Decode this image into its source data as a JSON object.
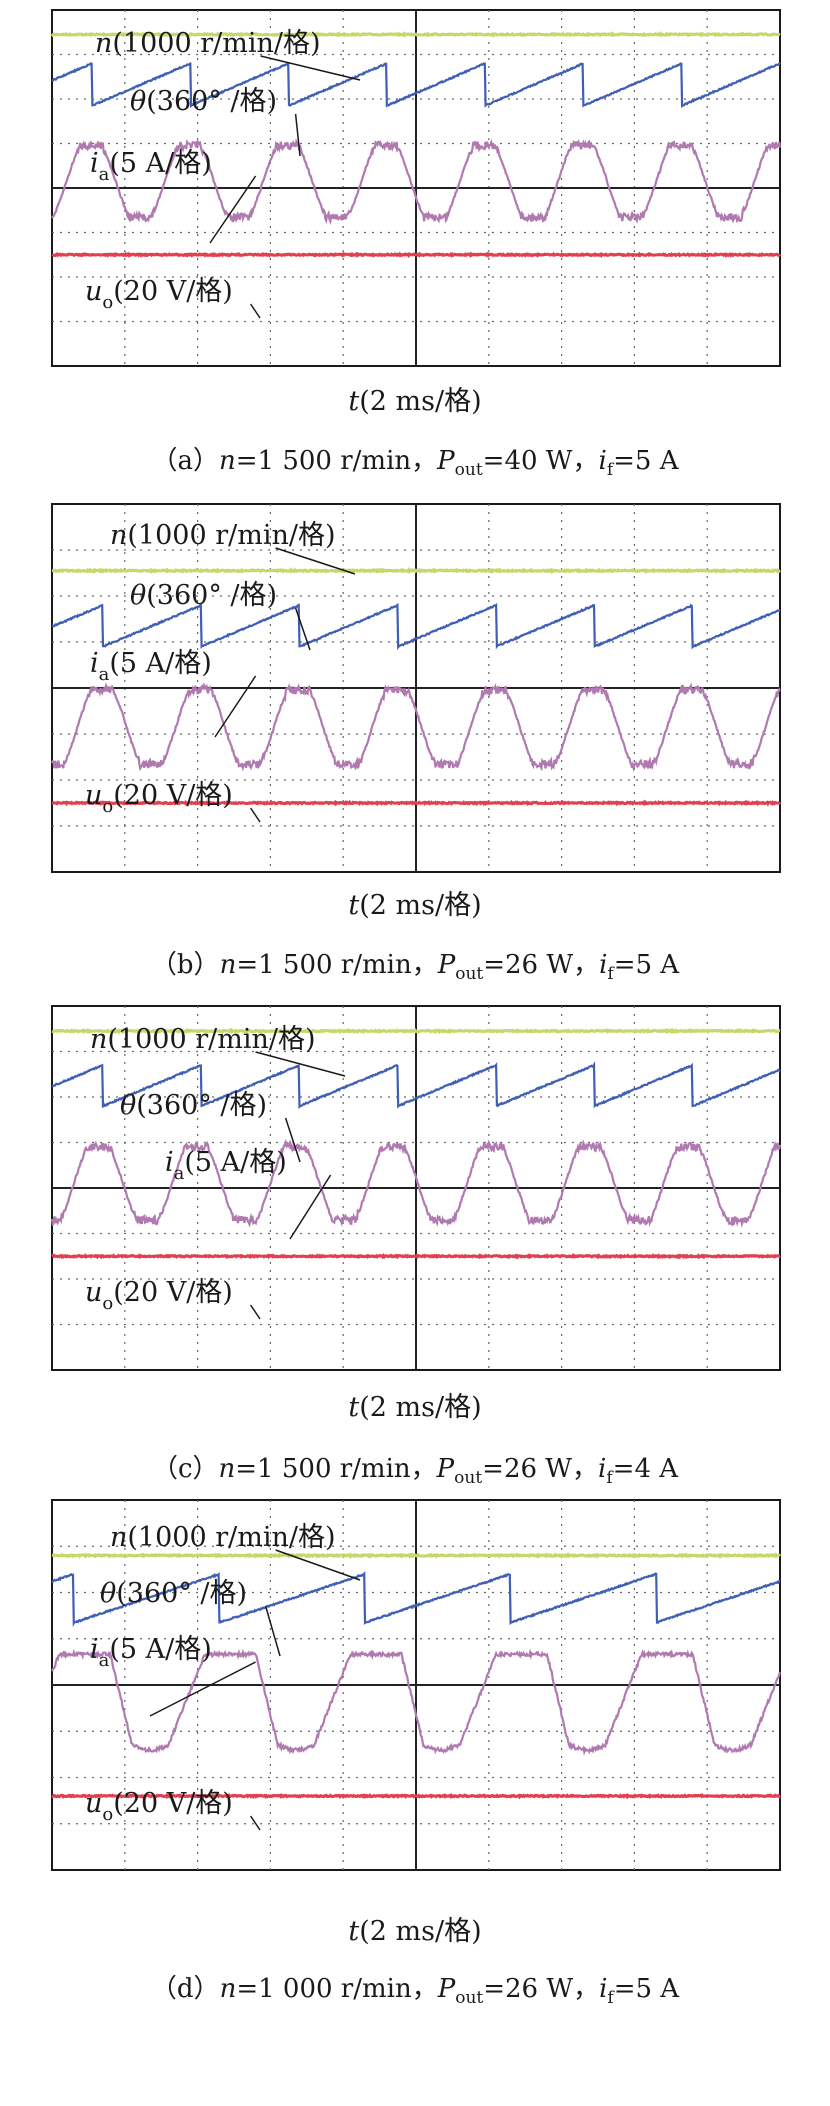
{
  "chart_data": [
    {
      "type": "line",
      "id": "a",
      "caption": {
        "tag": "（a）",
        "n_sym": "n",
        "n_val": "=1 500 r/min，",
        "p_sym": "P",
        "p_sub": "out",
        "p_val": "=40 W，",
        "i_sym": "i",
        "i_sub": "f",
        "i_val": "=5 A"
      },
      "xlabel": {
        "sym": "t",
        "rest": "(2 ms/格)"
      },
      "grid": {
        "divisions_x": 10,
        "divisions_y": 8,
        "major_center_lines": true
      },
      "traces": [
        {
          "name": "n",
          "label_sym": "n",
          "label_rest": "(1000 r/min/格)",
          "color": "#c6d86a",
          "kind": "flat",
          "level_div": 0.55
        },
        {
          "name": "theta",
          "label_sym": "θ",
          "label_rest": "(360° /格)",
          "color": "#3f5fb5",
          "kind": "sawtooth",
          "period_div": 1.35,
          "phase_div": 0.55,
          "low_div": 2.15,
          "high_div": 1.2
        },
        {
          "name": "ia",
          "label_sym": "i",
          "label_sub": "a",
          "label_rest": "(5 A/格)",
          "color": "#b07ab0",
          "kind": "current",
          "period_div": 1.35,
          "phase_div": 0.2,
          "center_div": 3.85,
          "amp_div": 0.85
        },
        {
          "name": "uo",
          "label_sym": "u",
          "label_sub": "o",
          "label_rest": "(20 V/格)",
          "color": "#e04050",
          "kind": "flat",
          "level_div": 5.5
        }
      ]
    },
    {
      "type": "line",
      "id": "b",
      "caption": {
        "tag": "（b）",
        "n_sym": "n",
        "n_val": "=1 500 r/min，",
        "p_sym": "P",
        "p_sub": "out",
        "p_val": "=26 W，",
        "i_sym": "i",
        "i_sub": "f",
        "i_val": "=5 A"
      },
      "xlabel": {
        "sym": "t",
        "rest": "(2 ms/格)"
      },
      "grid": {
        "divisions_x": 10,
        "divisions_y": 8,
        "major_center_lines": true
      },
      "traces": [
        {
          "name": "n",
          "label_sym": "n",
          "label_rest": "(1000 r/min/格)",
          "color": "#c6d86a",
          "kind": "flat",
          "level_div": 1.45
        },
        {
          "name": "theta",
          "label_sym": "θ",
          "label_rest": "(360° /格)",
          "color": "#3f5fb5",
          "kind": "sawtooth",
          "period_div": 1.35,
          "phase_div": 0.7,
          "low_div": 3.1,
          "high_div": 2.2
        },
        {
          "name": "ia",
          "label_sym": "i",
          "label_sub": "a",
          "label_rest": "(5 A/格)",
          "color": "#b07ab0",
          "kind": "current",
          "period_div": 1.35,
          "phase_div": 0.35,
          "center_div": 4.85,
          "amp_div": 0.85
        },
        {
          "name": "uo",
          "label_sym": "u",
          "label_sub": "o",
          "label_rest": "(20 V/格)",
          "color": "#e04050",
          "kind": "flat",
          "level_div": 6.5
        }
      ]
    },
    {
      "type": "line",
      "id": "c",
      "caption": {
        "tag": "（c）",
        "n_sym": "n",
        "n_val": "=1 500 r/min，",
        "p_sym": "P",
        "p_sub": "out",
        "p_val": "=26 W，",
        "i_sym": "i",
        "i_sub": "f",
        "i_val": "=4 A"
      },
      "xlabel": {
        "sym": "t",
        "rest": "(2 ms/格)"
      },
      "grid": {
        "divisions_x": 10,
        "divisions_y": 8,
        "major_center_lines": true
      },
      "traces": [
        {
          "name": "n",
          "label_sym": "n",
          "label_rest": "(1000 r/min/格)",
          "color": "#c6d86a",
          "kind": "flat",
          "level_div": 0.55
        },
        {
          "name": "theta",
          "label_sym": "θ",
          "label_rest": "(360° /格)",
          "color": "#3f5fb5",
          "kind": "sawtooth",
          "period_div": 1.35,
          "phase_div": 0.7,
          "low_div": 2.2,
          "high_div": 1.3
        },
        {
          "name": "ia",
          "label_sym": "i",
          "label_sub": "a",
          "label_rest": "(5 A/格)",
          "color": "#b07ab0",
          "kind": "current",
          "period_div": 1.35,
          "phase_div": 0.3,
          "center_div": 3.9,
          "amp_div": 0.85
        },
        {
          "name": "uo",
          "label_sym": "u",
          "label_sub": "o",
          "label_rest": "(20 V/格)",
          "color": "#e04050",
          "kind": "flat",
          "level_div": 5.5
        }
      ]
    },
    {
      "type": "line",
      "id": "d",
      "caption": {
        "tag": "（d）",
        "n_sym": "n",
        "n_val": "=1 000 r/min，",
        "p_sym": "P",
        "p_sub": "out",
        "p_val": "=26 W，",
        "i_sym": "i",
        "i_sub": "f",
        "i_val": "=5 A"
      },
      "xlabel": {
        "sym": "t",
        "rest": "(2 ms/格)"
      },
      "grid": {
        "divisions_x": 10,
        "divisions_y": 8,
        "major_center_lines": true
      },
      "traces": [
        {
          "name": "n",
          "label_sym": "n",
          "label_rest": "(1000 r/min/格)",
          "color": "#c6d86a",
          "kind": "flat",
          "level_div": 1.2
        },
        {
          "name": "theta",
          "label_sym": "θ",
          "label_rest": "(360° /格)",
          "color": "#3f5fb5",
          "kind": "sawtooth",
          "period_div": 2.0,
          "phase_div": 0.3,
          "low_div": 2.65,
          "high_div": 1.6
        },
        {
          "name": "ia",
          "label_sym": "i",
          "label_sub": "a",
          "label_rest": "(5 A/格)",
          "color": "#b07ab0",
          "kind": "current_flat",
          "period_div": 2.0,
          "phase_div": 0.1,
          "center_div": 4.2,
          "amp_div": 1.15
        },
        {
          "name": "uo",
          "label_sym": "u",
          "label_sub": "o",
          "label_rest": "(20 V/格)",
          "color": "#e04050",
          "kind": "flat",
          "level_div": 6.4
        }
      ]
    }
  ]
}
